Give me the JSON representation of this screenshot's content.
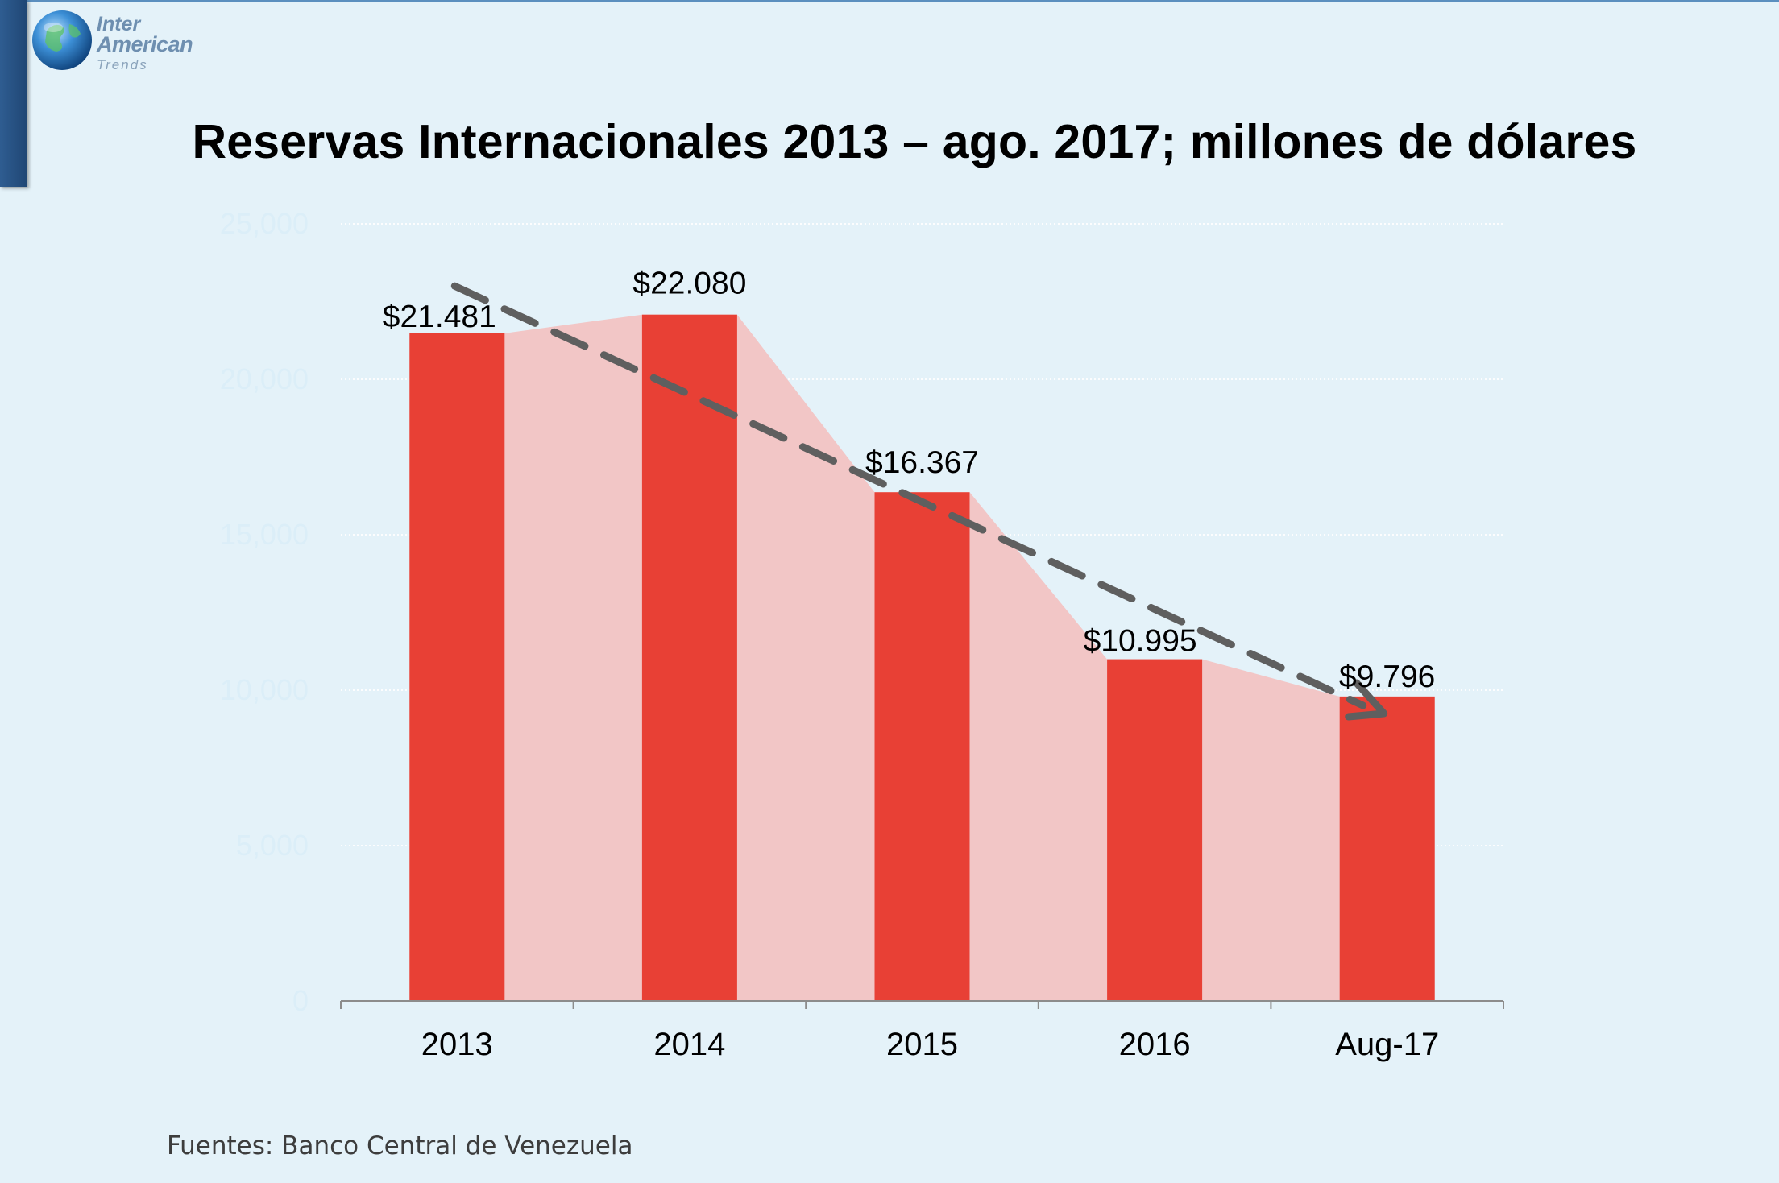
{
  "logo": {
    "line1": "Inter",
    "line2": "American",
    "line3": "Trends"
  },
  "source_note": "Fuentes: Banco Central de Venezuela",
  "colors": {
    "background": "#e4f2f9",
    "bar": "#e84035",
    "area": "#f2c6c6",
    "trend": "#5f5f5f",
    "tick_text": "#dbeef8"
  },
  "chart_data": {
    "type": "bar",
    "title": "Reservas Internacionales 2013 – ago. 2017; millones de dólares",
    "categories": [
      "2013",
      "2014",
      "2015",
      "2016",
      "Aug-17"
    ],
    "values": [
      21481,
      22080,
      16367,
      10995,
      9796
    ],
    "data_labels": [
      "$21.481",
      "$22.080",
      "$16.367",
      "$10.995",
      "$9.796"
    ],
    "y_ticks": [
      "0",
      "5,000",
      "10,000",
      "15,000",
      "20,000",
      "25,000"
    ],
    "ylim": [
      0,
      25000
    ],
    "grid": true,
    "overlay_area": true,
    "trend_arrow": {
      "style": "dashed",
      "from": 23000,
      "to": 9300
    }
  }
}
